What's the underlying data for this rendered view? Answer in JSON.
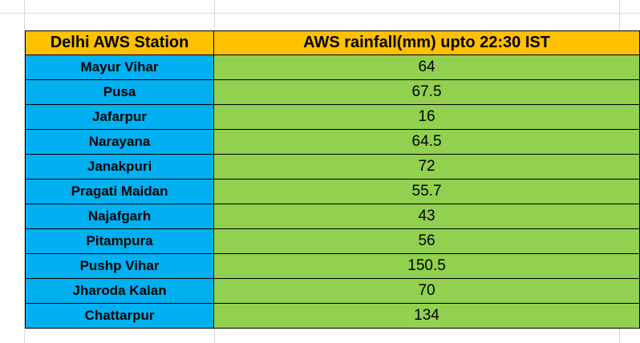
{
  "table": {
    "header": {
      "station": "Delhi AWS Station",
      "rainfall": "AWS rainfall(mm)  upto 22:30 IST"
    },
    "rows": [
      {
        "station": "Mayur Vihar",
        "rainfall": "64"
      },
      {
        "station": "Pusa",
        "rainfall": "67.5"
      },
      {
        "station": "Jafarpur",
        "rainfall": "16"
      },
      {
        "station": "Narayana",
        "rainfall": "64.5"
      },
      {
        "station": "Janakpuri",
        "rainfall": "72"
      },
      {
        "station": "Pragati Maidan",
        "rainfall": "55.7"
      },
      {
        "station": "Najafgarh",
        "rainfall": "43"
      },
      {
        "station": "Pitampura",
        "rainfall": "56"
      },
      {
        "station": "Pushp Vihar",
        "rainfall": "150.5"
      },
      {
        "station": "Jharoda Kalan",
        "rainfall": "70"
      },
      {
        "station": "Chattarpur",
        "rainfall": "134"
      }
    ]
  },
  "colors": {
    "header_bg": "#ffc000",
    "station_bg": "#00b0f0",
    "rainfall_bg": "#92d050",
    "gridline": "#d9d9d9",
    "border": "#000000"
  }
}
